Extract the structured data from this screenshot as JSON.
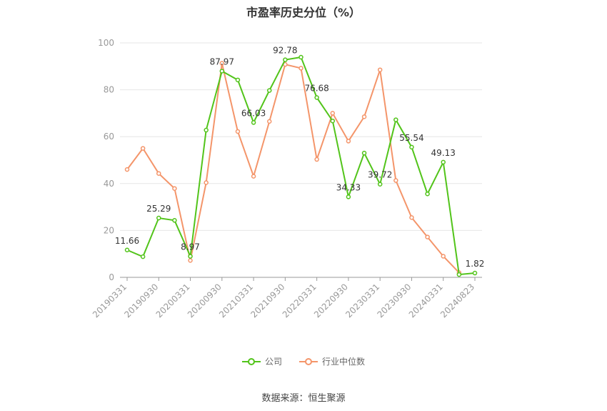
{
  "chart_data": {
    "type": "line",
    "title": "市盈率历史分位（%）",
    "x": [
      "20190331",
      "20190630",
      "20190930",
      "20191231",
      "20200331",
      "20200630",
      "20200930",
      "20201231",
      "20210331",
      "20210630",
      "20210930",
      "20211231",
      "20220331",
      "20220630",
      "20220930",
      "20221231",
      "20230331",
      "20230630",
      "20230930",
      "20231231",
      "20240331",
      "20240630",
      "20240823"
    ],
    "x_tick_labels": [
      "20190331",
      "20190930",
      "20200331",
      "20200930",
      "20210331",
      "20210930",
      "20220331",
      "20220930",
      "20230331",
      "20230930",
      "20240331",
      "20240823"
    ],
    "ylim": [
      0,
      100
    ],
    "y_ticks": [
      0,
      20,
      40,
      60,
      80,
      100
    ],
    "grid": true,
    "legend_position": "bottom",
    "series": [
      {
        "name": "公司",
        "color": "#52c41a",
        "values": [
          11.66,
          8.8,
          25.29,
          24.3,
          8.97,
          62.8,
          87.97,
          84.2,
          66.03,
          79.7,
          92.78,
          93.9,
          76.68,
          66.7,
          34.33,
          53.0,
          39.72,
          67.2,
          55.54,
          35.6,
          49.13,
          1.2,
          1.82
        ],
        "labels": {
          "0": "11.66",
          "2": "25.29",
          "4": "8.97",
          "6": "87.97",
          "8": "66.03",
          "10": "92.78",
          "12": "76.68",
          "14": "34.33",
          "16": "39.72",
          "18": "55.54",
          "20": "49.13",
          "22": "1.82"
        }
      },
      {
        "name": "行业中位数",
        "color": "#f4956a",
        "values": [
          46.0,
          55.0,
          44.3,
          37.9,
          7.2,
          40.4,
          91.3,
          62.2,
          43.1,
          66.5,
          90.8,
          89.2,
          50.3,
          70.0,
          58.1,
          68.5,
          88.5,
          41.3,
          25.5,
          17.2,
          9.0,
          2.0,
          null
        ]
      }
    ]
  },
  "source": "数据来源：恒生聚源"
}
